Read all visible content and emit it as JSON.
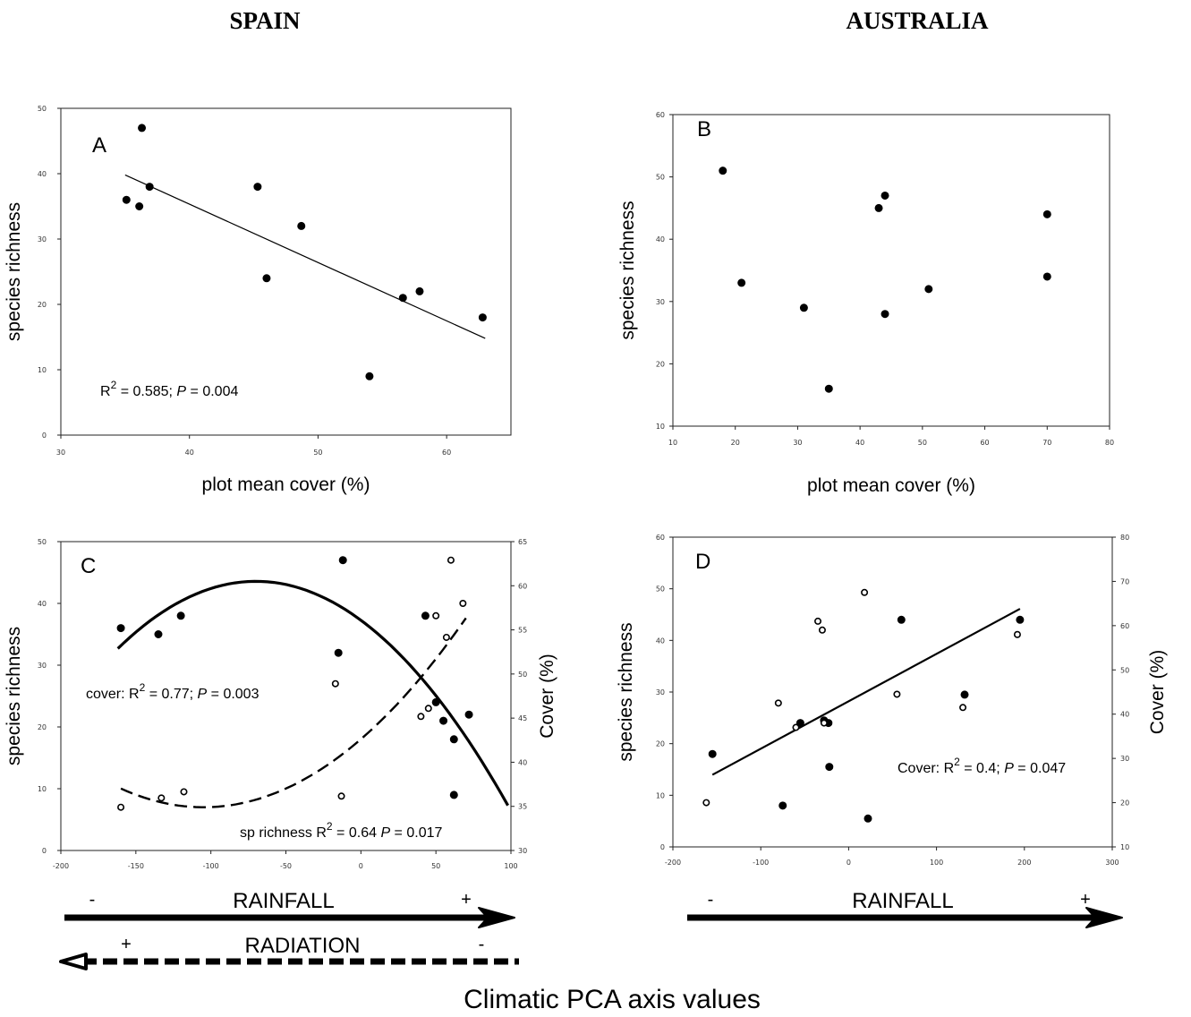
{
  "headings": {
    "left": "SPAIN",
    "right": "AUSTRALIA"
  },
  "footer_label": "Climatic PCA axis values",
  "colors": {
    "ink": "#000000",
    "background": "#ffffff"
  },
  "chart_data": [
    {
      "id": "A",
      "panel_label": "A",
      "type": "scatter",
      "xlabel": "plot mean cover (%)",
      "ylabel": "species richness",
      "xlim": [
        30,
        65
      ],
      "ylim": [
        0,
        50
      ],
      "xticks": [
        30,
        40,
        50,
        60
      ],
      "yticks": [
        0,
        10,
        20,
        30,
        40,
        50
      ],
      "series": [
        {
          "marker": "filled",
          "x": [
            35.1,
            36.1,
            36.3,
            36.9,
            45.3,
            46.0,
            48.7,
            54.0,
            56.6,
            57.9,
            62.8
          ],
          "y": [
            36,
            35,
            47,
            38,
            38,
            24,
            32,
            9,
            21,
            22,
            18
          ]
        }
      ],
      "fit": {
        "kind": "linear",
        "x": [
          35,
          63
        ],
        "y": [
          39.8,
          14.8
        ]
      },
      "annotation": {
        "pre": "R",
        "sup": "2",
        "post": " = 0.585; ",
        "italic": "P",
        "tail": " = 0.004"
      }
    },
    {
      "id": "B",
      "panel_label": "B",
      "type": "scatter",
      "xlabel": "plot mean cover (%)",
      "ylabel": "species richness",
      "xlim": [
        10,
        80
      ],
      "ylim": [
        10,
        60
      ],
      "xticks": [
        10,
        20,
        30,
        40,
        50,
        60,
        70,
        80
      ],
      "yticks": [
        10,
        20,
        30,
        40,
        50,
        60
      ],
      "series": [
        {
          "marker": "filled",
          "x": [
            18,
            21,
            31,
            35,
            43,
            44,
            44,
            51,
            70,
            70
          ],
          "y": [
            51,
            33,
            29,
            16,
            45,
            47,
            28,
            32,
            44,
            34
          ]
        }
      ]
    },
    {
      "id": "C",
      "panel_label": "C",
      "type": "scatter",
      "ylabel": "species richness",
      "y2label": "Cover (%)",
      "xlim": [
        -200,
        100
      ],
      "ylim": [
        0,
        50
      ],
      "y2lim": [
        30,
        65
      ],
      "xticks": [
        -200,
        -150,
        -100,
        -50,
        0,
        50,
        100
      ],
      "xtick_labels": [
        "-200",
        "-150",
        "-100",
        "-50",
        "0",
        "50",
        "100"
      ],
      "yticks": [
        0,
        10,
        20,
        30,
        40,
        50
      ],
      "y2ticks": [
        30,
        35,
        40,
        45,
        50,
        55,
        60,
        65
      ],
      "series": [
        {
          "marker": "filled",
          "axis": "right",
          "x": [
            -160,
            -135,
            -120,
            -15,
            -12,
            43,
            50,
            55,
            62,
            62,
            72
          ],
          "y": [
            55.2,
            54.5,
            56.6,
            52.4,
            62.9,
            56.6,
            46.8,
            44.7,
            42.6,
            36.3,
            45.4
          ]
        },
        {
          "marker": "open",
          "axis": "left",
          "x": [
            -160,
            -133,
            -118,
            -17,
            -13,
            40,
            45,
            50,
            57,
            60,
            68
          ],
          "y": [
            7,
            8.5,
            9.5,
            27,
            8.8,
            21.7,
            23,
            38,
            34.5,
            47,
            40
          ]
        }
      ],
      "fits": [
        {
          "kind": "quadratic",
          "axis": "right",
          "style": "solid",
          "vertex_x": -70,
          "vertex_y": 60.5,
          "a": -0.0009,
          "x_range": [
            -162,
            98
          ]
        },
        {
          "kind": "quadratic",
          "axis": "left",
          "style": "dashed",
          "vertex_x": -105,
          "vertex_y": 7.0,
          "a": 0.001,
          "x_range": [
            -160,
            70
          ]
        }
      ],
      "annotations": [
        {
          "pre": "cover: R",
          "sup": "2",
          "post": " = 0.77; ",
          "italic": "P",
          "tail": " = 0.003"
        },
        {
          "pre": "sp richness  R",
          "sup": "2",
          "post": " = 0.64  ",
          "italic": "P",
          "tail": " = 0.017"
        }
      ],
      "arrows": [
        {
          "label": "RAINFALL",
          "left_sign": "-",
          "right_sign": "+",
          "direction": "right",
          "style": "solid"
        },
        {
          "label": "RADIATION",
          "left_sign": "+",
          "right_sign": "-",
          "direction": "left",
          "style": "dashed"
        }
      ]
    },
    {
      "id": "D",
      "panel_label": "D",
      "type": "scatter",
      "ylabel": "species richness",
      "y2label": "Cover (%)",
      "xlim": [
        -200,
        300
      ],
      "ylim": [
        0,
        60
      ],
      "y2lim": [
        10,
        80
      ],
      "xticks": [
        -200,
        -100,
        0,
        100,
        200,
        300
      ],
      "xtick_labels": [
        "-200",
        "-100",
        "0",
        "100",
        "200",
        "300"
      ],
      "yticks": [
        0,
        10,
        20,
        30,
        40,
        50,
        60
      ],
      "y2ticks": [
        10,
        20,
        30,
        40,
        50,
        60,
        70,
        80
      ],
      "series": [
        {
          "marker": "filled",
          "axis": "left",
          "x": [
            -155,
            -75,
            -55,
            -28,
            -23,
            -22,
            22,
            60,
            132,
            195
          ],
          "y": [
            18,
            8,
            24,
            24.5,
            24,
            15.5,
            5.5,
            44,
            29.5,
            44
          ]
        },
        {
          "marker": "open",
          "axis": "right",
          "x": [
            -162,
            -80,
            -60,
            -35,
            -30,
            -28,
            18,
            55,
            130,
            192
          ],
          "y": [
            20,
            42.5,
            37,
            61,
            59,
            38,
            67.5,
            44.5,
            41.5,
            58
          ]
        }
      ],
      "fit": {
        "kind": "linear",
        "axis": "right",
        "x": [
          -155,
          195
        ],
        "y": [
          26.3,
          63.8
        ]
      },
      "annotation": {
        "pre": "Cover: R",
        "sup": "2",
        "post": " = 0.4; ",
        "italic": "P",
        "tail": " = 0.047"
      },
      "arrows": [
        {
          "label": "RAINFALL",
          "left_sign": "-",
          "right_sign": "+",
          "direction": "right",
          "style": "solid"
        }
      ]
    }
  ]
}
